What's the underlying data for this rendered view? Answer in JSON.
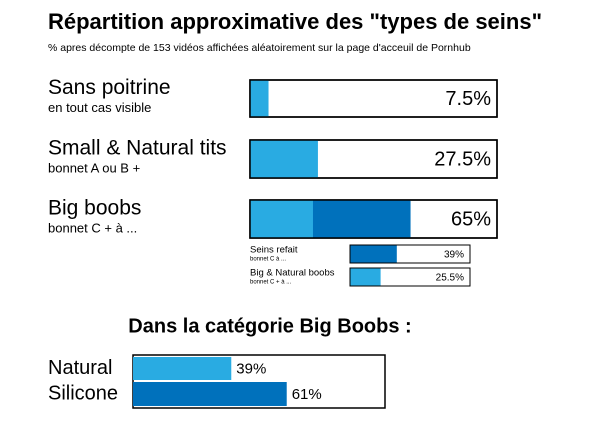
{
  "chart_data": [
    {
      "type": "bar",
      "title": "Répartition approximative des \"types de seins\"",
      "subtitle": "% apres décompte de 153 vidéos affichées aléatoirement sur la page d'acceuil de Pornhub",
      "categories": [
        "Sans poitrine",
        "Small & Natural tits",
        "Big boobs"
      ],
      "sublabels": [
        "en tout cas visible",
        "bonnet A ou B +",
        "bonnet C + à ..."
      ],
      "values": [
        7.5,
        27.5,
        65
      ],
      "value_labels": [
        "7.5%",
        "27.5%",
        "65%"
      ],
      "colors": [
        "#29abe2",
        "#29abe2",
        "#0071bc"
      ],
      "xlim": [
        0,
        100
      ]
    },
    {
      "type": "bar",
      "categories": [
        "Seins refait",
        "Big & Natural boobs"
      ],
      "sublabels": [
        "bonnet C à ...",
        "bonnet C + à ..."
      ],
      "values": [
        39,
        25.5
      ],
      "value_labels": [
        "39%",
        "25.5%"
      ],
      "colors": [
        "#0071bc",
        "#29abe2"
      ],
      "xlim": [
        0,
        100
      ]
    },
    {
      "type": "bar",
      "title": "Dans la catégorie Big Boobs :",
      "categories": [
        "Natural",
        "Silicone"
      ],
      "values": [
        39,
        61
      ],
      "value_labels": [
        "39%",
        "61%"
      ],
      "colors": [
        "#29abe2",
        "#0071bc"
      ],
      "xlim": [
        0,
        100
      ]
    }
  ]
}
